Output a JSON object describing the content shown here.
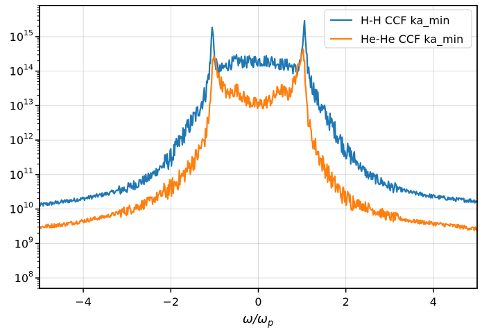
{
  "chart_data": {
    "type": "line",
    "title": "",
    "xlabel": "ω/ω",
    "xlabel_sub": "p",
    "ylabel": "",
    "xlim": [
      -5,
      5
    ],
    "ylim": [
      50000000,
      8000000000000000
    ],
    "yscale": "log",
    "grid": true,
    "legend_position": "top-right",
    "x_ticks": [
      -4,
      -2,
      0,
      2,
      4
    ],
    "x_tick_labels": [
      "−4",
      "−2",
      "0",
      "2",
      "4"
    ],
    "y_ticks": [
      {
        "exp": "8",
        "value": 100000000
      },
      {
        "exp": "9",
        "value": 1000000000
      },
      {
        "exp": "10",
        "value": 10000000000
      },
      {
        "exp": "11",
        "value": 100000000000
      },
      {
        "exp": "12",
        "value": 1000000000000
      },
      {
        "exp": "13",
        "value": 10000000000000
      },
      {
        "exp": "14",
        "value": 100000000000000
      },
      {
        "exp": "15",
        "value": 1000000000000000
      }
    ],
    "y_tick_base": "10",
    "x": [
      -5.0,
      -4.5,
      -4.0,
      -3.5,
      -3.0,
      -2.5,
      -2.0,
      -1.7,
      -1.4,
      -1.2,
      -1.1,
      -1.05,
      -1.0,
      -0.9,
      -0.7,
      -0.5,
      -0.3,
      0.0,
      0.3,
      0.5,
      0.7,
      0.9,
      1.0,
      1.05,
      1.1,
      1.2,
      1.4,
      1.7,
      2.0,
      2.5,
      3.0,
      3.5,
      4.0,
      4.5,
      5.0
    ],
    "series": [
      {
        "name": "H-H CCF ka_min",
        "color": "#1f77b4",
        "values": [
          13000000000.0,
          16000000000.0,
          20000000000.0,
          27000000000.0,
          40000000000.0,
          80000000000.0,
          300000000000.0,
          1500000000000.0,
          6000000000000.0,
          25000000000000.0,
          150000000000000.0,
          3000000000000000.0,
          200000000000000.0,
          100000000000000.0,
          150000000000000.0,
          200000000000000.0,
          180000000000000.0,
          200000000000000.0,
          200000000000000.0,
          160000000000000.0,
          150000000000000.0,
          100000000000000.0,
          300000000000000.0,
          3000000000000000.0,
          200000000000000.0,
          50000000000000.0,
          10000000000000.0,
          2500000000000.0,
          500000000000.0,
          100000000000.0,
          45000000000.0,
          30000000000.0,
          23000000000.0,
          19000000000.0,
          17000000000.0
        ]
      },
      {
        "name": "He-He CCF ka_min",
        "color": "#ff7f0e",
        "values": [
          3000000000.0,
          3500000000.0,
          4500000000.0,
          6000000000.0,
          9000000000.0,
          16000000000.0,
          40000000000.0,
          100000000000.0,
          350000000000.0,
          1300000000000.0,
          10000000000000.0,
          150000000000000.0,
          250000000000000.0,
          60000000000000.0,
          20000000000000.0,
          30000000000000.0,
          15000000000000.0,
          10000000000000.0,
          15000000000000.0,
          30000000000000.0,
          20000000000000.0,
          100000000000000.0,
          500000000000000.0,
          250000000000000.0,
          10000000000000.0,
          1500000000000.0,
          300000000000.0,
          60000000000.0,
          20000000000.0,
          11000000000.0,
          6000000000.0,
          4500000000.0,
          3800000000.0,
          3200000000.0,
          2600000000.0
        ]
      }
    ]
  }
}
